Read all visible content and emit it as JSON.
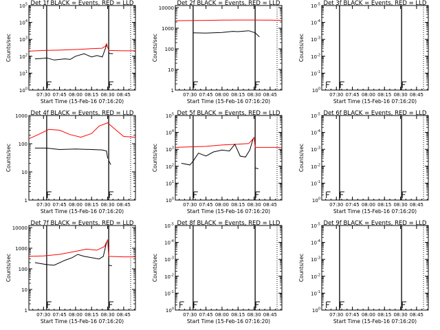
{
  "chart_data": [
    {
      "type": "line",
      "title": "Det 1f BLACK = Events, RED = LLD",
      "xlabel": "Start Time (15-Feb-16 07:16:20)",
      "ylabel": "Counts/sec",
      "x_ticks": [
        "07:30",
        "07:45",
        "08:00",
        "08:15",
        "08:30",
        "08:45"
      ],
      "x_range": [
        "07:16:20",
        "08:56:00"
      ],
      "y_scale": "log",
      "y_exp_range": [
        0,
        5
      ],
      "y_ticks": [
        {
          "base": "10",
          "exp": "0"
        },
        {
          "base": "10",
          "exp": "1"
        },
        {
          "base": "10",
          "exp": "2"
        },
        {
          "base": "10",
          "exp": "3"
        },
        {
          "base": "10",
          "exp": "4"
        },
        {
          "base": "10",
          "exp": "5"
        }
      ],
      "vlines_solid": [
        "07:33:00",
        "08:31:00"
      ],
      "vlines_dotted": [
        "08:51:30"
      ],
      "markers": [
        "07:33:00",
        "08:31:00"
      ],
      "series": [
        {
          "color": "#ff0000",
          "x": [
            "07:16:20",
            "07:30:00",
            "07:45:00",
            "08:00:00",
            "08:15:00",
            "08:25:00",
            "08:28:00",
            "08:29:00",
            "08:31:00",
            "08:45:00",
            "08:56:00"
          ],
          "y": [
            200,
            220,
            230,
            250,
            280,
            300,
            400,
            550,
            220,
            210,
            210
          ]
        },
        {
          "color": "#000000",
          "x": [
            "07:22:00",
            "07:30:00",
            "07:33:00",
            "07:40:00",
            "07:50:00",
            "07:55:00",
            "08:00:00",
            "08:08:00",
            "08:15:00",
            "08:20:00",
            "08:25:00",
            "08:27:00",
            "08:29:00"
          ],
          "y": [
            70,
            75,
            80,
            60,
            70,
            65,
            100,
            140,
            90,
            110,
            90,
            200,
            450
          ]
        },
        {
          "color": "#000000",
          "x": [
            "08:31:00",
            "08:35:00"
          ],
          "y": [
            150,
            140
          ]
        }
      ]
    },
    {
      "type": "line",
      "title": "Det 2f BLACK = Events, RED = LLD",
      "xlabel": "Start Time (15-Feb-16 07:16:20)",
      "ylabel": "Counts/sec",
      "x_ticks": [
        "07:30",
        "07:45",
        "08:00",
        "08:15",
        "08:30",
        "08:45"
      ],
      "x_range": [
        "07:16:20",
        "08:56:00"
      ],
      "y_scale": "log",
      "y_exp_range": [
        0,
        4.1
      ],
      "y_ticks": [
        {
          "base": "1",
          "exp": ""
        },
        {
          "base": "10",
          "exp": ""
        },
        {
          "base": "100",
          "exp": ""
        },
        {
          "base": "1000",
          "exp": ""
        },
        {
          "base": "10000",
          "exp": ""
        }
      ],
      "vlines_solid": [
        "07:33:00",
        "08:31:00"
      ],
      "vlines_dotted": [
        "08:51:30"
      ],
      "markers": [
        "07:33:00",
        "08:31:00"
      ],
      "series": [
        {
          "color": "#ff0000",
          "x": [
            "07:16:20",
            "07:45:00",
            "08:00:00",
            "08:15:00",
            "08:31:00",
            "08:45:00",
            "08:56:00"
          ],
          "y": [
            2300,
            2400,
            2450,
            2500,
            2500,
            2450,
            2400
          ]
        },
        {
          "color": "#000000",
          "x": [
            "07:33:00",
            "07:45:00",
            "08:00:00",
            "08:10:00",
            "08:15:00",
            "08:25:00",
            "08:31:00",
            "08:35:00"
          ],
          "y": [
            600,
            580,
            620,
            700,
            680,
            750,
            600,
            380
          ]
        }
      ]
    },
    {
      "type": "line",
      "title": "Det 3f BLACK = Events, RED = LLD",
      "xlabel": "Start Time (15-Feb-16 07:16:20)",
      "ylabel": "Counts/sec",
      "x_ticks": [
        "07:30",
        "07:45",
        "08:00",
        "08:15",
        "08:30",
        "08:45"
      ],
      "x_range": [
        "07:16:20",
        "08:56:00"
      ],
      "y_scale": "log",
      "y_exp_range": [
        0,
        5
      ],
      "y_ticks": [
        {
          "base": "10",
          "exp": "0"
        },
        {
          "base": "10",
          "exp": "-1"
        },
        {
          "base": "10",
          "exp": "-2"
        },
        {
          "base": "10",
          "exp": "-3"
        },
        {
          "base": "10",
          "exp": "-4"
        },
        {
          "base": "10",
          "exp": "-5"
        }
      ],
      "vlines_solid": [
        "07:33:00",
        "08:31:00"
      ],
      "vlines_dotted": [
        "08:51:30"
      ],
      "markers": [
        "07:20:00",
        "07:33:00",
        "08:31:00"
      ],
      "series": []
    },
    {
      "type": "line",
      "title": "Det 4f BLACK = Events, RED = LLD",
      "xlabel": "Start Time (15-Feb-16 07:16:20)",
      "ylabel": "Counts/sec",
      "x_ticks": [
        "07:30",
        "07:45",
        "08:00",
        "08:15",
        "08:30",
        "08:45"
      ],
      "x_range": [
        "07:16:20",
        "08:56:00"
      ],
      "y_scale": "log",
      "y_exp_range": [
        0,
        3
      ],
      "y_ticks": [
        {
          "base": "1",
          "exp": ""
        },
        {
          "base": "10",
          "exp": ""
        },
        {
          "base": "100",
          "exp": ""
        },
        {
          "base": "1000",
          "exp": ""
        }
      ],
      "vlines_solid": [
        "07:33:00",
        "08:31:00"
      ],
      "vlines_dotted": [
        "08:51:30"
      ],
      "markers": [
        "07:33:00",
        "08:31:00"
      ],
      "series": [
        {
          "color": "#ff0000",
          "x": [
            "07:16:20",
            "07:25:00",
            "07:35:00",
            "07:45:00",
            "07:55:00",
            "08:05:00",
            "08:15:00",
            "08:22:00",
            "08:30:00",
            "08:38:00",
            "08:45:00",
            "08:56:00"
          ],
          "y": [
            150,
            210,
            320,
            300,
            210,
            170,
            230,
            420,
            550,
            300,
            180,
            170
          ]
        },
        {
          "color": "#000000",
          "x": [
            "07:22:00",
            "07:33:00",
            "07:45:00",
            "08:00:00",
            "08:15:00",
            "08:25:00",
            "08:29:00",
            "08:30:00"
          ],
          "y": [
            70,
            70,
            62,
            65,
            62,
            60,
            55,
            30
          ]
        },
        {
          "color": "#000000",
          "x": [
            "08:31:00",
            "08:33:00"
          ],
          "y": [
            25,
            18
          ]
        }
      ]
    },
    {
      "type": "line",
      "title": "Det 5f BLACK = Events, RED = LLD",
      "xlabel": "Start Time (15-Feb-16 07:16:20)",
      "ylabel": "Counts/sec",
      "x_ticks": [
        "07:30",
        "07:45",
        "08:00",
        "08:15",
        "08:30",
        "08:45"
      ],
      "x_range": [
        "07:16:20",
        "08:56:00"
      ],
      "y_scale": "log",
      "y_exp_range": [
        0,
        5
      ],
      "y_ticks": [
        {
          "base": "10",
          "exp": "0"
        },
        {
          "base": "10",
          "exp": "1"
        },
        {
          "base": "10",
          "exp": "2"
        },
        {
          "base": "10",
          "exp": "3"
        },
        {
          "base": "10",
          "exp": "4"
        },
        {
          "base": "10",
          "exp": "5"
        }
      ],
      "vlines_solid": [
        "07:33:00",
        "08:31:00"
      ],
      "vlines_dotted": [
        "08:51:30"
      ],
      "markers": [
        "07:33:00",
        "08:31:00"
      ],
      "series": [
        {
          "color": "#ff0000",
          "x": [
            "07:16:20",
            "07:30:00",
            "07:45:00",
            "08:00:00",
            "08:15:00",
            "08:25:00",
            "08:28:00",
            "08:30:00",
            "08:31:00",
            "08:45:00",
            "08:56:00"
          ],
          "y": [
            1300,
            1400,
            1500,
            1800,
            2000,
            2200,
            3500,
            5000,
            1300,
            1300,
            1300
          ]
        },
        {
          "color": "#000000",
          "x": [
            "07:22:00",
            "07:30:00",
            "07:33:00",
            "07:38:00",
            "07:45:00",
            "07:52:00",
            "08:00:00",
            "08:07:00",
            "08:12:00",
            "08:17:00",
            "08:22:00",
            "08:26:00",
            "08:29:00"
          ],
          "y": [
            150,
            120,
            200,
            600,
            400,
            700,
            900,
            800,
            2000,
            400,
            350,
            900,
            4000
          ]
        },
        {
          "color": "#000000",
          "x": [
            "08:31:00",
            "08:34:00"
          ],
          "y": [
            80,
            70
          ]
        }
      ]
    },
    {
      "type": "line",
      "title": "Det 6f BLACK = Events, RED = LLD",
      "xlabel": "Start Time (15-Feb-16 07:16:20)",
      "ylabel": "Counts/sec",
      "x_ticks": [
        "07:30",
        "07:45",
        "08:00",
        "08:15",
        "08:30",
        "08:45"
      ],
      "x_range": [
        "07:16:20",
        "08:56:00"
      ],
      "y_scale": "log",
      "y_exp_range": [
        0,
        5
      ],
      "y_ticks": [
        {
          "base": "10",
          "exp": "0"
        },
        {
          "base": "10",
          "exp": "-1"
        },
        {
          "base": "10",
          "exp": "-2"
        },
        {
          "base": "10",
          "exp": "-3"
        },
        {
          "base": "10",
          "exp": "-4"
        },
        {
          "base": "10",
          "exp": "-5"
        }
      ],
      "vlines_solid": [
        "07:33:00",
        "08:31:00"
      ],
      "vlines_dotted": [
        "08:51:30"
      ],
      "markers": [
        "07:20:00",
        "07:33:00",
        "08:31:00"
      ],
      "series": []
    },
    {
      "type": "line",
      "title": "Det 7f BLACK = Events, RED = LLD",
      "xlabel": "Start Time (15-Feb-16 07:16:20)",
      "ylabel": "Counts/sec",
      "x_ticks": [
        "07:30",
        "07:45",
        "08:00",
        "08:15",
        "08:30",
        "08:45"
      ],
      "x_range": [
        "07:16:20",
        "08:56:00"
      ],
      "y_scale": "log",
      "y_exp_range": [
        0,
        4.1
      ],
      "y_ticks": [
        {
          "base": "1",
          "exp": ""
        },
        {
          "base": "10",
          "exp": ""
        },
        {
          "base": "100",
          "exp": ""
        },
        {
          "base": "1000",
          "exp": ""
        },
        {
          "base": "10000",
          "exp": ""
        }
      ],
      "vlines_solid": [
        "07:33:00",
        "08:31:00"
      ],
      "vlines_dotted": [
        "08:51:30"
      ],
      "markers": [
        "07:33:00",
        "08:31:00"
      ],
      "series": [
        {
          "color": "#ff0000",
          "x": [
            "07:16:20",
            "07:30:00",
            "07:45:00",
            "08:00:00",
            "08:10:00",
            "08:20:00",
            "08:27:00",
            "08:30:00",
            "08:31:00",
            "08:45:00",
            "08:56:00"
          ],
          "y": [
            400,
            420,
            500,
            700,
            900,
            800,
            1200,
            2500,
            400,
            380,
            380
          ]
        },
        {
          "color": "#000000",
          "x": [
            "07:22:00",
            "07:33:00",
            "07:40:00",
            "07:50:00",
            "07:57:00",
            "08:02:00",
            "08:08:00",
            "08:15:00",
            "08:22:00",
            "08:26:00",
            "08:29:00"
          ],
          "y": [
            200,
            160,
            150,
            260,
            350,
            500,
            400,
            350,
            300,
            400,
            2000
          ]
        },
        {
          "color": "#000000",
          "x": [
            "08:31:00",
            "08:34:00"
          ],
          "y": [
            150,
            140
          ]
        }
      ]
    },
    {
      "type": "line",
      "title": "Det 8f BLACK = Events, RED = LLD",
      "xlabel": "Start Time (15-Feb-16 07:16:20)",
      "ylabel": "Counts/sec",
      "x_ticks": [
        "07:30",
        "07:45",
        "08:00",
        "08:15",
        "08:30",
        "08:45"
      ],
      "x_range": [
        "07:16:20",
        "08:56:00"
      ],
      "y_scale": "log",
      "y_exp_range": [
        0,
        5
      ],
      "y_ticks": [
        {
          "base": "10",
          "exp": "0"
        },
        {
          "base": "10",
          "exp": "-1"
        },
        {
          "base": "10",
          "exp": "-2"
        },
        {
          "base": "10",
          "exp": "-3"
        },
        {
          "base": "10",
          "exp": "-4"
        },
        {
          "base": "10",
          "exp": "-5"
        }
      ],
      "vlines_solid": [
        "07:33:00",
        "08:31:00"
      ],
      "vlines_dotted": [
        "08:51:30"
      ],
      "markers": [
        "07:20:00",
        "07:33:00",
        "08:31:00"
      ],
      "series": []
    },
    {
      "type": "line",
      "title": "Det 9f BLACK = Events, RED = LLD",
      "xlabel": "Start Time (15-Feb-16 07:16:20)",
      "ylabel": "Counts/sec",
      "x_ticks": [
        "07:30",
        "07:45",
        "08:00",
        "08:15",
        "08:30",
        "08:45"
      ],
      "x_range": [
        "07:16:20",
        "08:56:00"
      ],
      "y_scale": "log",
      "y_exp_range": [
        0,
        5
      ],
      "y_ticks": [
        {
          "base": "10",
          "exp": "0"
        },
        {
          "base": "10",
          "exp": "-1"
        },
        {
          "base": "10",
          "exp": "-2"
        },
        {
          "base": "10",
          "exp": "-3"
        },
        {
          "base": "10",
          "exp": "-4"
        },
        {
          "base": "10",
          "exp": "-5"
        }
      ],
      "vlines_solid": [
        "07:33:00",
        "08:31:00"
      ],
      "vlines_dotted": [
        "08:51:30"
      ],
      "markers": [
        "07:20:00",
        "07:33:00",
        "08:31:00"
      ],
      "series": []
    }
  ]
}
